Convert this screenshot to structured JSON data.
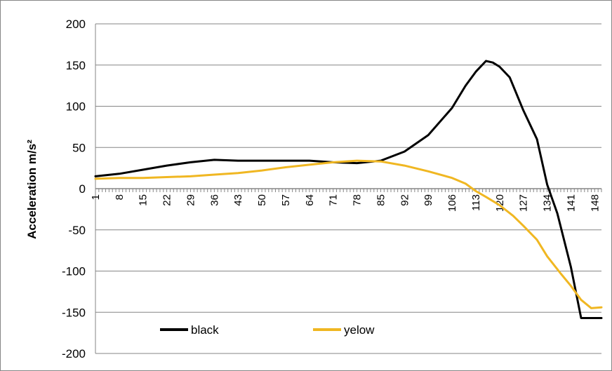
{
  "chart_data": {
    "type": "line",
    "title": "",
    "xlabel": "",
    "ylabel": "Acceleration m/s²",
    "ylim": [
      -200,
      200
    ],
    "yticks": [
      200,
      150,
      100,
      50,
      0,
      -50,
      -100,
      -150,
      -200
    ],
    "xlim": [
      1,
      150
    ],
    "xtick_labels": [
      "1",
      "8",
      "15",
      "22",
      "29",
      "36",
      "43",
      "50",
      "57",
      "64",
      "71",
      "78",
      "85",
      "92",
      "99",
      "106",
      "113",
      "120",
      "127",
      "134",
      "141",
      "148"
    ],
    "grid": true,
    "legend_position": "bottom-left",
    "series": [
      {
        "name": "black",
        "color": "#000000",
        "points": [
          [
            1,
            15
          ],
          [
            8,
            18
          ],
          [
            15,
            23
          ],
          [
            22,
            28
          ],
          [
            29,
            32
          ],
          [
            36,
            35
          ],
          [
            43,
            34
          ],
          [
            50,
            34
          ],
          [
            57,
            34
          ],
          [
            64,
            34
          ],
          [
            71,
            32
          ],
          [
            78,
            31
          ],
          [
            85,
            34
          ],
          [
            92,
            45
          ],
          [
            99,
            65
          ],
          [
            106,
            98
          ],
          [
            110,
            125
          ],
          [
            113,
            142
          ],
          [
            116,
            155
          ],
          [
            118,
            153
          ],
          [
            120,
            148
          ],
          [
            123,
            135
          ],
          [
            127,
            95
          ],
          [
            131,
            60
          ],
          [
            134,
            5
          ],
          [
            137,
            -30
          ],
          [
            141,
            -95
          ],
          [
            144,
            -157
          ],
          [
            150,
            -157
          ]
        ]
      },
      {
        "name": "yelow",
        "color": "#f0b722",
        "points": [
          [
            1,
            12
          ],
          [
            8,
            13
          ],
          [
            15,
            13
          ],
          [
            22,
            14
          ],
          [
            29,
            15
          ],
          [
            36,
            17
          ],
          [
            43,
            19
          ],
          [
            50,
            22
          ],
          [
            57,
            26
          ],
          [
            64,
            29
          ],
          [
            71,
            32
          ],
          [
            78,
            34
          ],
          [
            85,
            33
          ],
          [
            92,
            28
          ],
          [
            99,
            21
          ],
          [
            106,
            13
          ],
          [
            110,
            6
          ],
          [
            113,
            -3
          ],
          [
            116,
            -10
          ],
          [
            120,
            -20
          ],
          [
            124,
            -33
          ],
          [
            127,
            -45
          ],
          [
            131,
            -62
          ],
          [
            134,
            -82
          ],
          [
            138,
            -103
          ],
          [
            141,
            -118
          ],
          [
            144,
            -135
          ],
          [
            147,
            -145
          ],
          [
            150,
            -144
          ]
        ]
      }
    ]
  }
}
